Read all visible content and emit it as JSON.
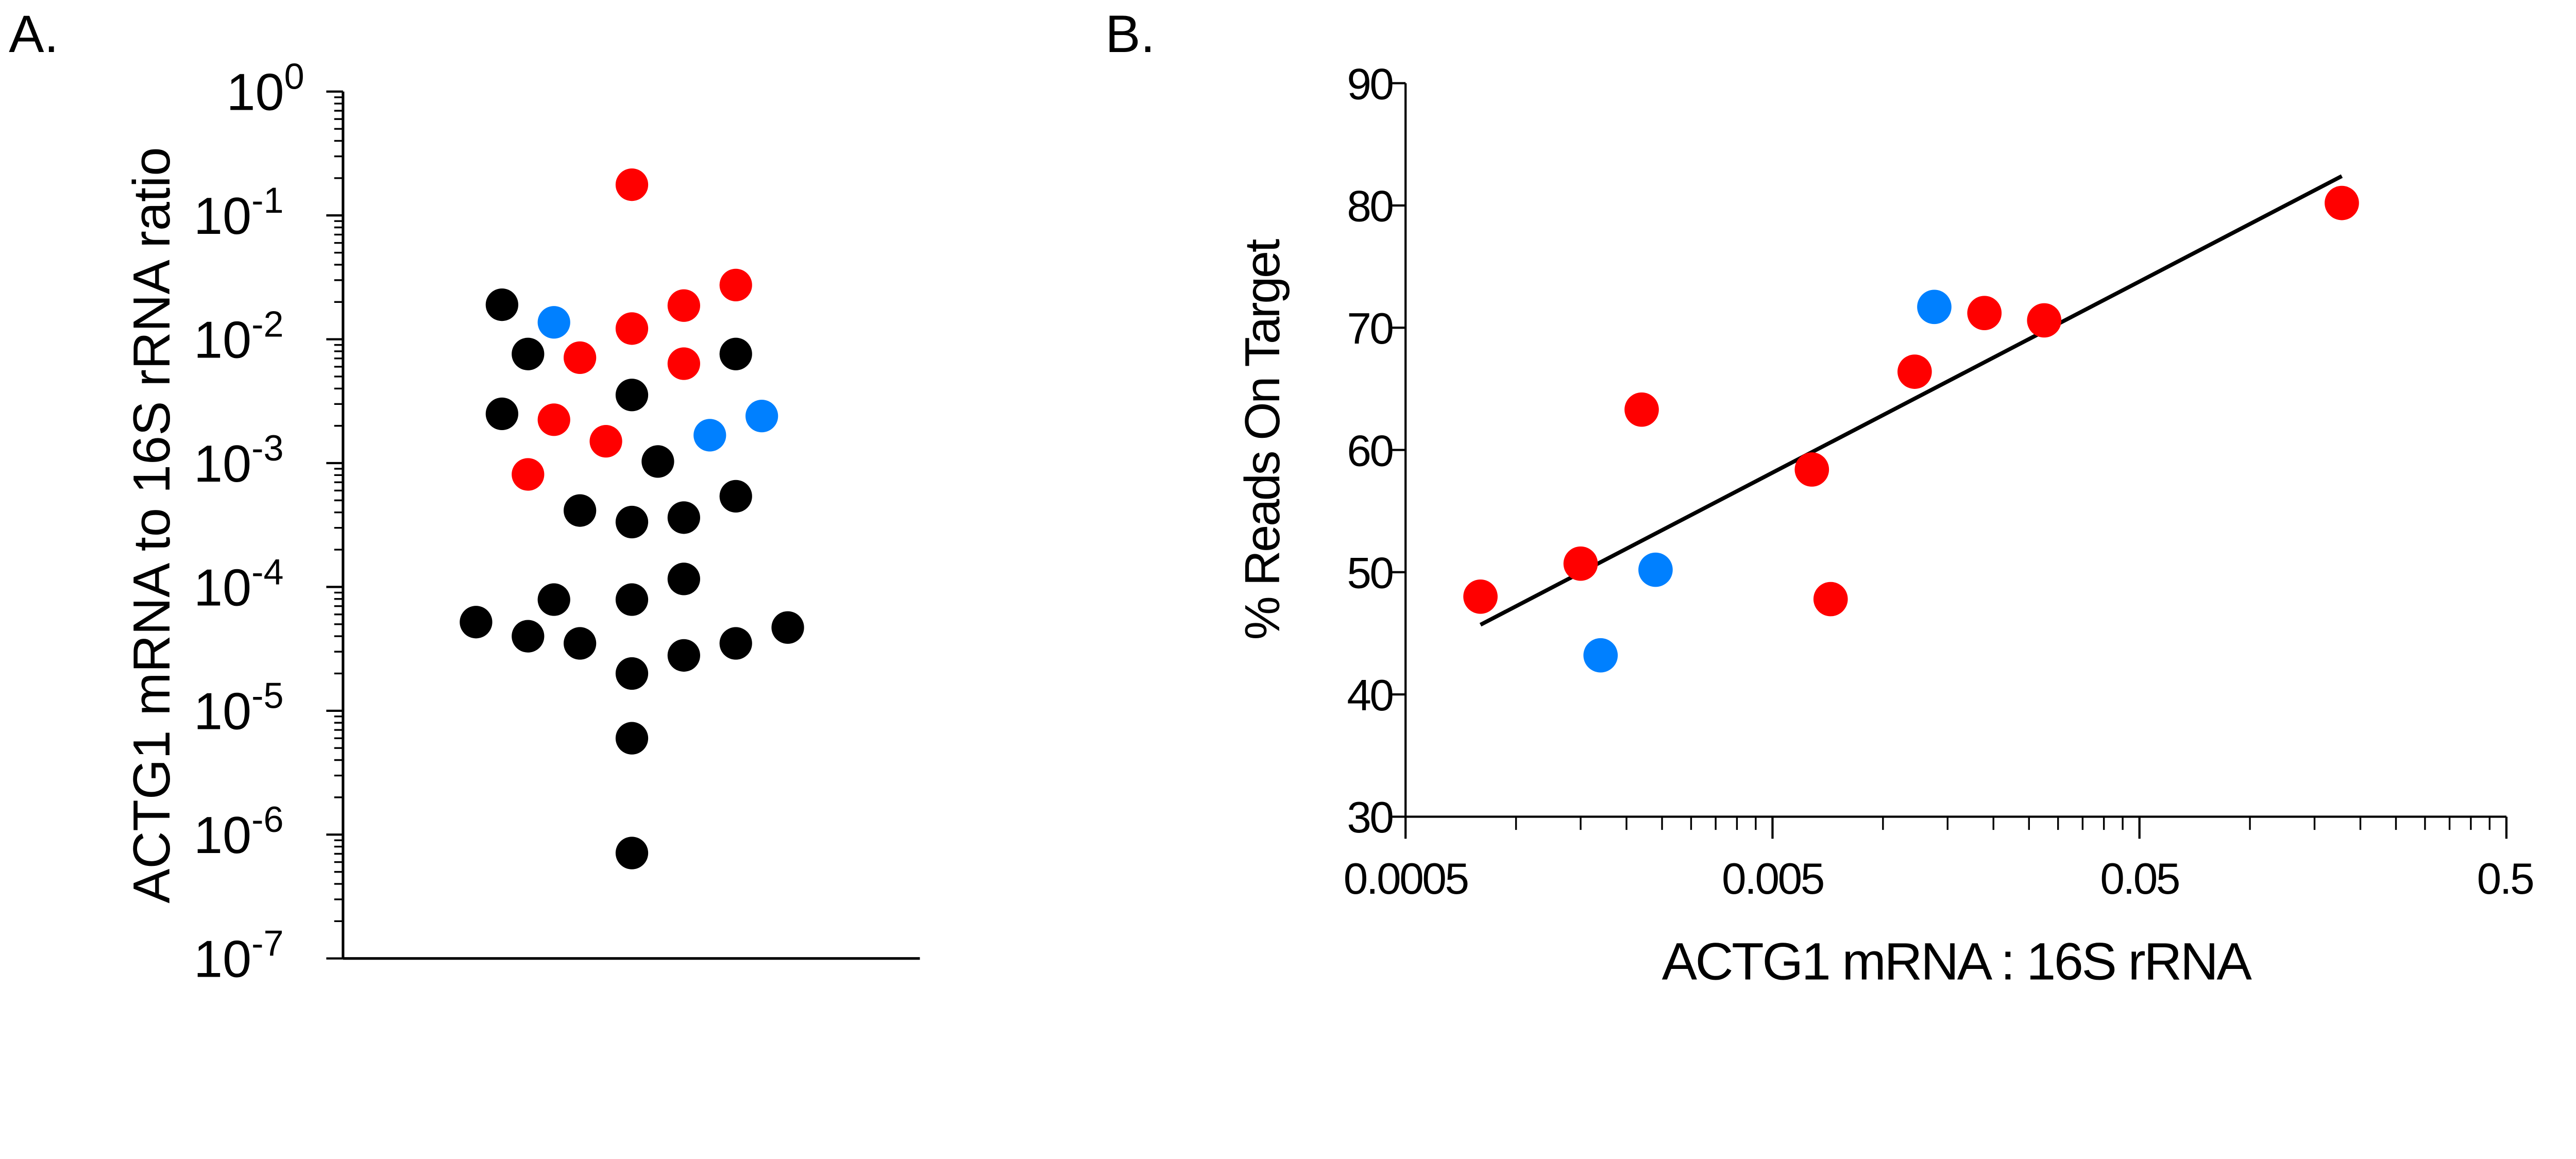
{
  "colors": {
    "black": "#000000",
    "red": "#ff0000",
    "blue": "#0080ff"
  },
  "chart_data": [
    {
      "panel_label": "A.",
      "type": "scatter",
      "ylabel": "ACTG1 mRNA to 16S rRNA ratio",
      "xlabel": "",
      "yscale": "log",
      "ylim": [
        1e-07,
        1
      ],
      "y_tick_labels": [
        {
          "base": "10",
          "exp": "0",
          "value": 1
        },
        {
          "base": "10",
          "exp": "-1",
          "value": 0.1
        },
        {
          "base": "10",
          "exp": "-2",
          "value": 0.01
        },
        {
          "base": "10",
          "exp": "-3",
          "value": 0.001
        },
        {
          "base": "10",
          "exp": "-4",
          "value": 0.0001
        },
        {
          "base": "10",
          "exp": "-5",
          "value": 1e-05
        },
        {
          "base": "10",
          "exp": "-6",
          "value": 1e-06
        },
        {
          "base": "10",
          "exp": "-7",
          "value": 1e-07
        }
      ],
      "grid": false,
      "points": [
        {
          "y": 0.019,
          "color": "black"
        },
        {
          "y": 0.0137,
          "color": "blue"
        },
        {
          "y": 0.177,
          "color": "red"
        },
        {
          "y": 0.0122,
          "color": "red"
        },
        {
          "y": 0.0187,
          "color": "red"
        },
        {
          "y": 0.0274,
          "color": "red"
        },
        {
          "y": 0.0076,
          "color": "black"
        },
        {
          "y": 0.0071,
          "color": "red"
        },
        {
          "y": 0.00635,
          "color": "red"
        },
        {
          "y": 0.0076,
          "color": "black"
        },
        {
          "y": 0.00355,
          "color": "black"
        },
        {
          "y": 0.0025,
          "color": "black"
        },
        {
          "y": 0.00224,
          "color": "red"
        },
        {
          "y": 0.0015,
          "color": "red"
        },
        {
          "y": 0.00168,
          "color": "blue"
        },
        {
          "y": 0.0024,
          "color": "blue"
        },
        {
          "y": 0.00103,
          "color": "black"
        },
        {
          "y": 0.00081,
          "color": "red"
        },
        {
          "y": 0.00054,
          "color": "black"
        },
        {
          "y": 0.000414,
          "color": "black"
        },
        {
          "y": 0.000334,
          "color": "black"
        },
        {
          "y": 0.000363,
          "color": "black"
        },
        {
          "y": 0.000116,
          "color": "black"
        },
        {
          "y": 7.9e-05,
          "color": "black"
        },
        {
          "y": 7.9e-05,
          "color": "black"
        },
        {
          "y": 5.2e-05,
          "color": "black"
        },
        {
          "y": 4e-05,
          "color": "black"
        },
        {
          "y": 3.5e-05,
          "color": "black"
        },
        {
          "y": 2e-05,
          "color": "black"
        },
        {
          "y": 2.8e-05,
          "color": "black"
        },
        {
          "y": 3.5e-05,
          "color": "black"
        },
        {
          "y": 4.7e-05,
          "color": "black"
        },
        {
          "y": 6e-06,
          "color": "black"
        },
        {
          "y": 7.1e-07,
          "color": "black"
        }
      ]
    },
    {
      "panel_label": "B.",
      "type": "scatter",
      "xlabel": "ACTG1 mRNA : 16S rRNA",
      "ylabel": "% Reads On Target",
      "xscale": "log",
      "xlim": [
        0.0005,
        0.5
      ],
      "ylim": [
        30,
        90
      ],
      "x_tick_labels": [
        "0.0005",
        "0.005",
        "0.05",
        "0.5"
      ],
      "y_tick_labels": [
        "30",
        "40",
        "50",
        "60",
        "70",
        "80",
        "90"
      ],
      "grid": false,
      "points": [
        {
          "x": 0.0008,
          "y": 48.0,
          "color": "red"
        },
        {
          "x": 0.0015,
          "y": 50.7,
          "color": "red"
        },
        {
          "x": 0.0017,
          "y": 43.2,
          "color": "blue"
        },
        {
          "x": 0.0024,
          "y": 50.2,
          "color": "blue"
        },
        {
          "x": 0.0022,
          "y": 63.3,
          "color": "red"
        },
        {
          "x": 0.0064,
          "y": 58.4,
          "color": "red"
        },
        {
          "x": 0.0072,
          "y": 47.8,
          "color": "red"
        },
        {
          "x": 0.0122,
          "y": 66.4,
          "color": "red"
        },
        {
          "x": 0.0138,
          "y": 71.7,
          "color": "blue"
        },
        {
          "x": 0.0189,
          "y": 71.2,
          "color": "red"
        },
        {
          "x": 0.0275,
          "y": 70.6,
          "color": "red"
        },
        {
          "x": 0.178,
          "y": 80.2,
          "color": "red"
        }
      ],
      "fit_line": {
        "x": [
          0.0008,
          0.178
        ],
        "y": [
          45.7,
          82.4
        ]
      }
    }
  ]
}
